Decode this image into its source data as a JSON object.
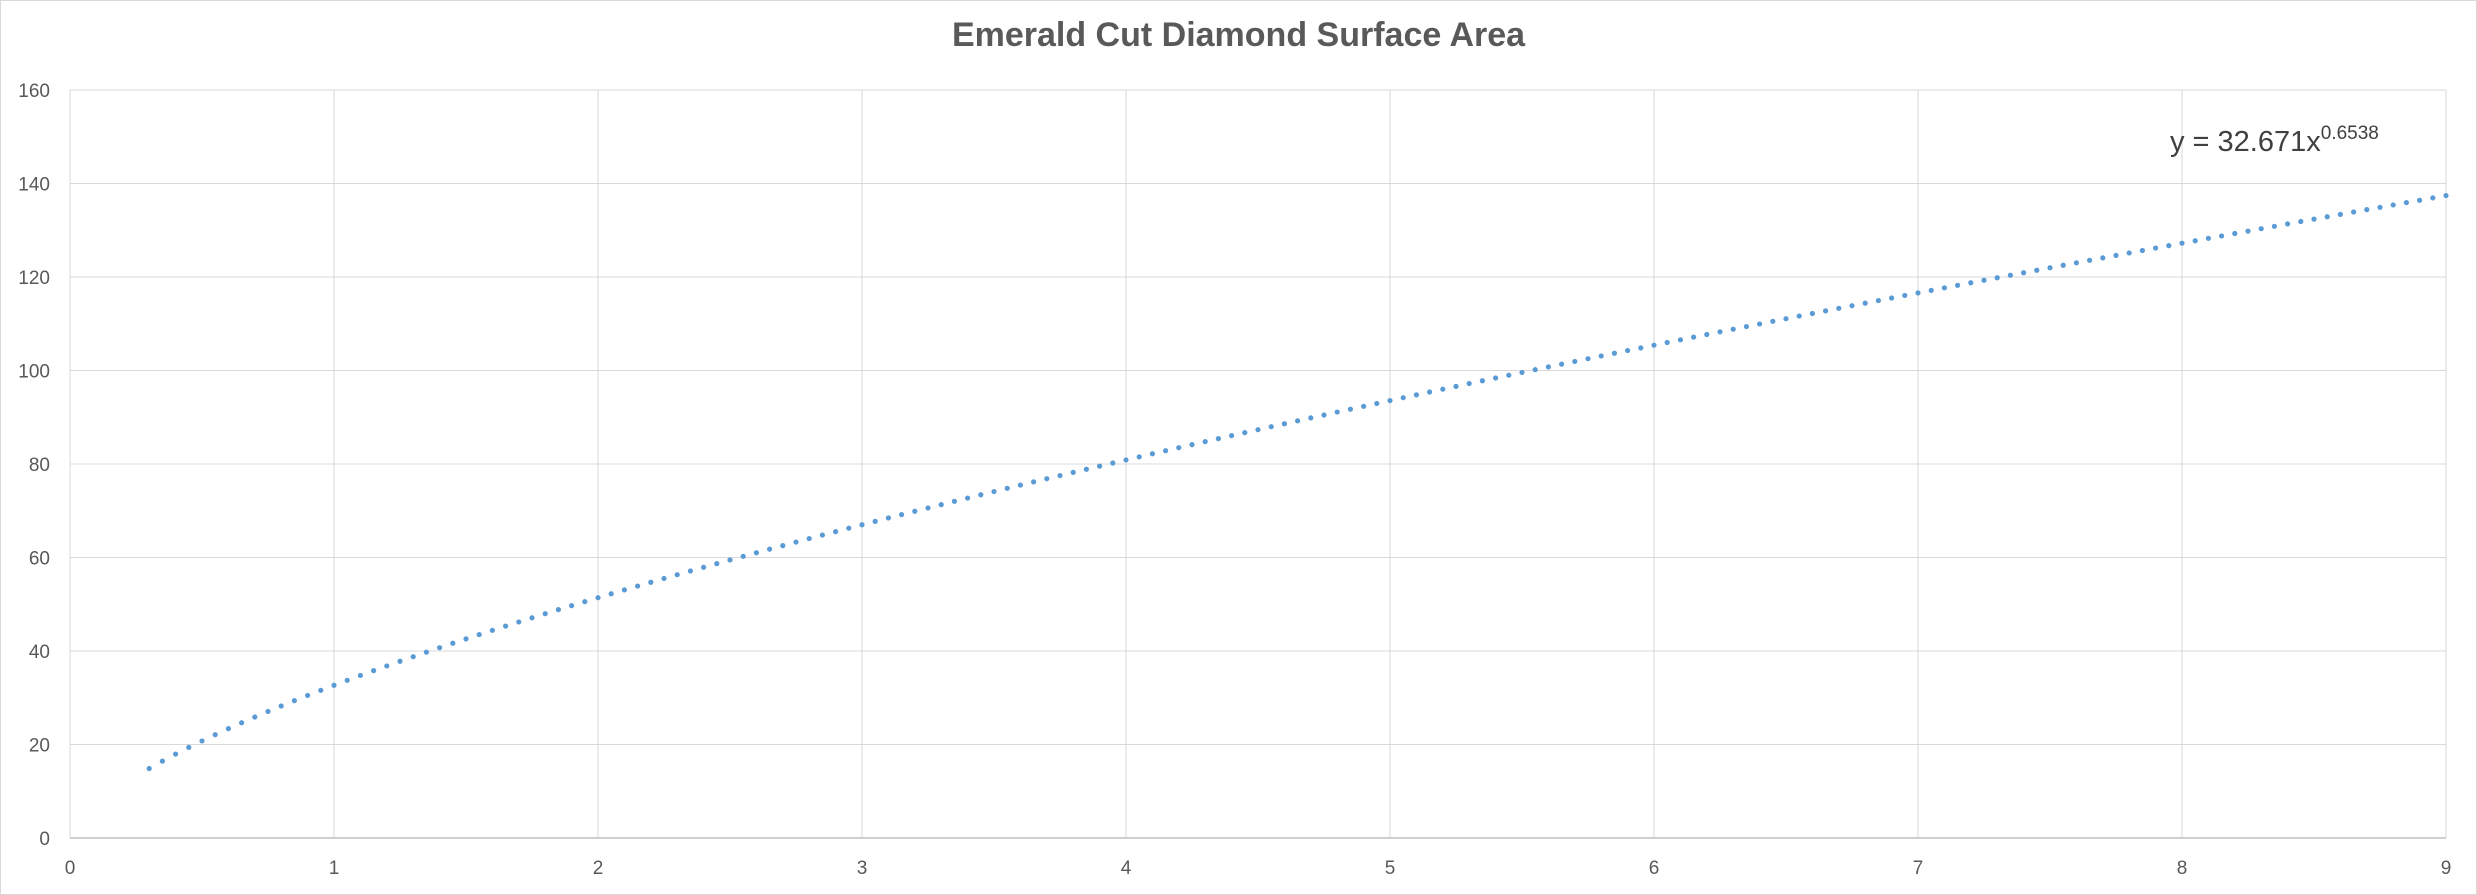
{
  "chart_data": {
    "type": "scatter",
    "title": "Emerald Cut Diamond Surface Area",
    "xlabel": "",
    "ylabel": "",
    "xlim": [
      0,
      9
    ],
    "ylim": [
      0,
      160
    ],
    "x_ticks": [
      0,
      1,
      2,
      3,
      4,
      5,
      6,
      7,
      8,
      9
    ],
    "y_ticks": [
      0,
      20,
      40,
      60,
      80,
      100,
      120,
      140,
      160
    ],
    "grid": true,
    "legend": "none",
    "trendline": {
      "label_prefix": "y = 32.671x",
      "label_exponent": "0.6538",
      "coefficient": 32.671,
      "exponent": 0.6538
    },
    "series": [
      {
        "color": "#5b9bd5",
        "marker": "dot",
        "x_start": 0.3,
        "x_end": 9.0,
        "x_step": 0.05
      }
    ]
  }
}
